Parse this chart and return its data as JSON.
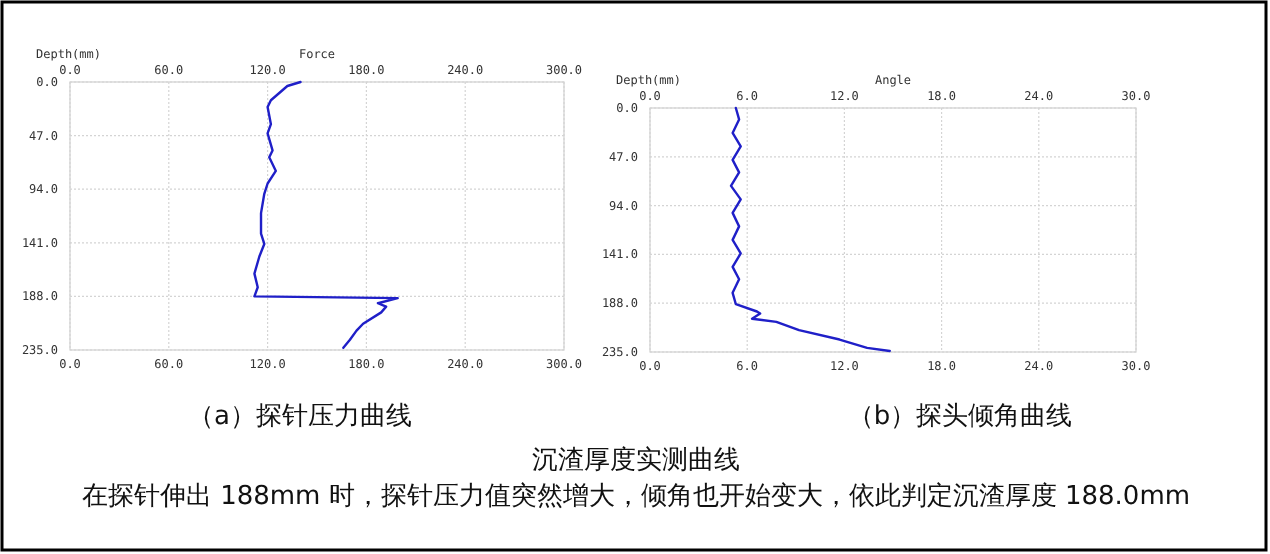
{
  "chart_data": [
    {
      "type": "line",
      "xlabel": "Force",
      "ylabel": "Depth(mm)",
      "grid": true,
      "annotations": [
        "（a）探针压力曲线"
      ],
      "xlim": [
        0,
        300
      ],
      "xticks": [
        {
          "value": 0,
          "label": "0.0"
        },
        {
          "value": 60,
          "label": "60.0"
        },
        {
          "value": 120,
          "label": "120.0"
        },
        {
          "value": 180,
          "label": "180.0"
        },
        {
          "value": 240,
          "label": "240.0"
        },
        {
          "value": 300,
          "label": "300.0"
        }
      ],
      "x2lim": [
        0,
        300
      ],
      "x2ticks": [
        {
          "value": 0,
          "label": "0.0"
        },
        {
          "value": 60,
          "label": "60.0"
        },
        {
          "value": 120,
          "label": "120.0"
        },
        {
          "value": 180,
          "label": "180.0"
        },
        {
          "value": 240,
          "label": "240.0"
        },
        {
          "value": 300,
          "label": "300.0"
        }
      ],
      "ylim": [
        235,
        0
      ],
      "yticks": [
        {
          "value": 0,
          "label": "0.0"
        },
        {
          "value": 47,
          "label": "47.0"
        },
        {
          "value": 94,
          "label": "94.0"
        },
        {
          "value": 141,
          "label": "141.0"
        },
        {
          "value": 188,
          "label": "188.0"
        },
        {
          "value": 235,
          "label": "235.0"
        }
      ],
      "series": [
        {
          "color": "#1f1fc8",
          "x": [
            140,
            132,
            122,
            120,
            122,
            120,
            123,
            121,
            125,
            120,
            118,
            116,
            116,
            118,
            115,
            112,
            114,
            112,
            199,
            187,
            192,
            189,
            178,
            174,
            170,
            166
          ],
          "values": [
            0,
            3.5,
            16,
            22,
            37,
            45,
            60,
            66,
            78,
            89,
            98,
            115,
            133,
            142,
            153,
            168,
            180,
            188,
            189.5,
            194,
            197,
            202,
            212,
            218,
            226,
            233
          ]
        }
      ]
    },
    {
      "type": "line",
      "xlabel": "Angle",
      "ylabel": "Depth(mm)",
      "grid": true,
      "annotations": [
        "（b）探头倾角曲线"
      ],
      "xlim": [
        0,
        30
      ],
      "xticks": [
        {
          "value": 0,
          "label": "0.0"
        },
        {
          "value": 6,
          "label": "6.0"
        },
        {
          "value": 12,
          "label": "12.0"
        },
        {
          "value": 18,
          "label": "18.0"
        },
        {
          "value": 24,
          "label": "24.0"
        },
        {
          "value": 30,
          "label": "30.0"
        }
      ],
      "x2lim": [
        0,
        30
      ],
      "x2ticks": [
        {
          "value": 0,
          "label": "0.0"
        },
        {
          "value": 6,
          "label": "6.0"
        },
        {
          "value": 12,
          "label": "12.0"
        },
        {
          "value": 18,
          "label": "18.0"
        },
        {
          "value": 24,
          "label": "24.0"
        },
        {
          "value": 30,
          "label": "30.0"
        }
      ],
      "ylim": [
        235,
        0
      ],
      "yticks": [
        {
          "value": 0,
          "label": "0.0"
        },
        {
          "value": 47,
          "label": "47.0"
        },
        {
          "value": 94,
          "label": "94.0"
        },
        {
          "value": 141,
          "label": "141.0"
        },
        {
          "value": 188,
          "label": "188.0"
        },
        {
          "value": 235,
          "label": "235.0"
        }
      ],
      "series": [
        {
          "color": "#1f1fc8",
          "x": [
            5.3,
            5.5,
            5.1,
            5.6,
            5.1,
            5.5,
            5.0,
            5.6,
            5.1,
            5.5,
            5.1,
            5.6,
            5.1,
            5.5,
            5.1,
            5.3,
            6.6,
            6.8,
            6.3,
            7.8,
            9.2,
            11.7,
            13.4,
            14.8
          ],
          "values": [
            0,
            11,
            24,
            37,
            50,
            62,
            75,
            88,
            101,
            114,
            127,
            140,
            153,
            165,
            178,
            189,
            196,
            198,
            203,
            206,
            214,
            223,
            231,
            234
          ]
        }
      ]
    },
    {
      "type": "other",
      "annotations": [
        "沉渣厚度实测曲线",
        "在探针伸出 188mm 时，探针压力值突然增大，倾角也开始变大，依此判定沉渣厚度 188.0mm"
      ]
    }
  ]
}
